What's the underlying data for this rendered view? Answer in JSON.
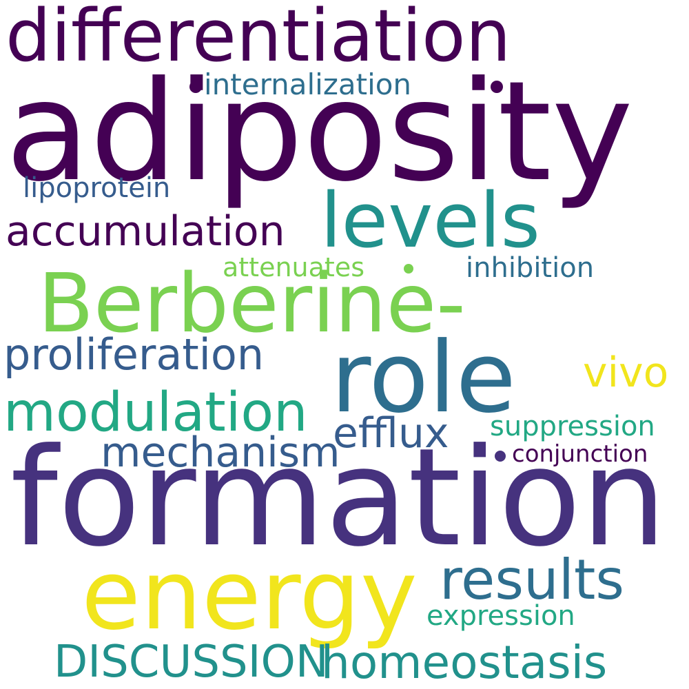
{
  "words": {
    "differentiation": "differentiation",
    "adiposity": "adiposity",
    "internalization": "internalization",
    "lipoprotein": "lipoprotein",
    "levels": "levels",
    "accumulation": "accumulation",
    "attenuates": "attenuates",
    "inhibition": "inhibition",
    "berberine": "Berberine-",
    "proliferation": "proliferation",
    "role": "role",
    "vivo": "vivo",
    "modulation": "modulation",
    "efflux": "efflux",
    "suppression": "suppression",
    "mechanism": "mechanism",
    "conjunction": "conjunction",
    "formation": "formation",
    "energy": "energy",
    "results": "results",
    "expression": "expression",
    "discussion": "DISCUSSION",
    "homeostasis": "homeostasis"
  },
  "colors": {
    "dark_purple": "#440154",
    "indigo": "#46327e",
    "blue": "#365c8d",
    "teal_blue": "#2e6e8e",
    "teal": "#21918c",
    "green_teal": "#22a884",
    "green": "#7ad151",
    "yellow": "#f1e51d",
    "background": "#ffffff"
  }
}
